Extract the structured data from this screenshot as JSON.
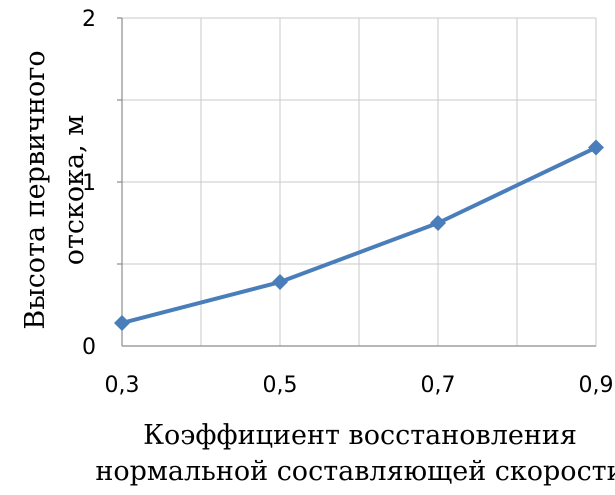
{
  "chart_data": {
    "type": "line",
    "title": "",
    "x": [
      0.3,
      0.5,
      0.7,
      0.9
    ],
    "x_tick_labels": [
      "0,3",
      "0,5",
      "0,7",
      "0,9"
    ],
    "xlim": [
      0.3,
      0.9
    ],
    "xlabel_lines": [
      "Коэффициент восстановления",
      "нормальной составляющей скорости"
    ],
    "ylabel_lines": [
      "Высота первичного",
      "отскока, м"
    ],
    "ylim": [
      0,
      2
    ],
    "y_tick_values": [
      0,
      1,
      2
    ],
    "y_tick_labels": [
      "0",
      "1",
      "2"
    ],
    "grid": true,
    "series": [
      {
        "values": [
          0.14,
          0.39,
          0.75,
          1.21
        ],
        "color": "#4a7ebb",
        "marker": "diamond"
      }
    ]
  }
}
